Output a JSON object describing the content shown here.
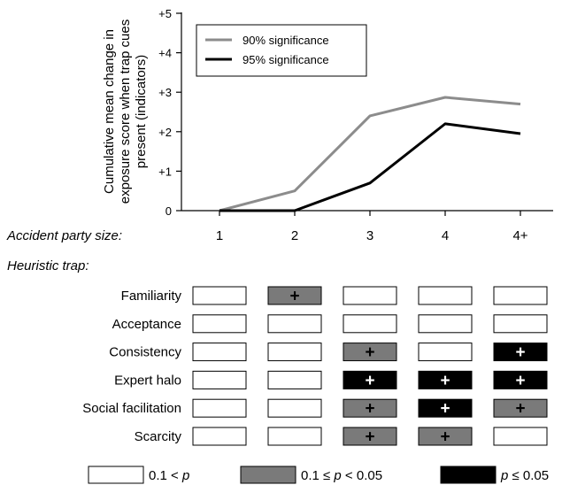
{
  "chart_data": [
    {
      "type": "line",
      "ylabel": "Cumulative mean change in exposure score when trap cues present (indicators)",
      "xlabel": "Accident party size:",
      "categories": [
        "1",
        "2",
        "3",
        "4",
        "4+"
      ],
      "yticks": [
        "0",
        "+1",
        "+2",
        "+3",
        "+4",
        "+5"
      ],
      "ylim": [
        0,
        5
      ],
      "grid": false,
      "legend_position": "top-left",
      "series": [
        {
          "name": "90% significance",
          "values": [
            0,
            0.5,
            2.4,
            2.87,
            2.7
          ],
          "color": "#8c8c8c"
        },
        {
          "name": "95% significance",
          "values": [
            0,
            0,
            0.7,
            2.2,
            1.95
          ],
          "color": "#000000"
        }
      ]
    },
    {
      "type": "table",
      "title": "Heuristic trap:",
      "columns": [
        "1",
        "2",
        "3",
        "4",
        "4+"
      ],
      "rows": [
        {
          "label": "Familiarity",
          "levels": [
            "ns",
            "p10",
            "ns",
            "ns",
            "ns"
          ]
        },
        {
          "label": "Acceptance",
          "levels": [
            "ns",
            "ns",
            "ns",
            "ns",
            "ns"
          ]
        },
        {
          "label": "Consistency",
          "levels": [
            "ns",
            "ns",
            "p10",
            "ns",
            "p05"
          ]
        },
        {
          "label": "Expert halo",
          "levels": [
            "ns",
            "ns",
            "p05",
            "p05",
            "p05"
          ]
        },
        {
          "label": "Social facilitation",
          "levels": [
            "ns",
            "ns",
            "p10",
            "p05",
            "p10"
          ]
        },
        {
          "label": "Scarcity",
          "levels": [
            "ns",
            "ns",
            "p10",
            "p10",
            "ns"
          ]
        }
      ],
      "cell_symbol": "+",
      "legend": [
        {
          "key": "ns",
          "label": "0.1 < p",
          "color": "#ffffff"
        },
        {
          "key": "p10",
          "label": "0.1 ≤ p < 0.05",
          "color": "#7a7a7a"
        },
        {
          "key": "p05",
          "label": "p ≤ 0.05",
          "color": "#000000"
        }
      ]
    }
  ]
}
